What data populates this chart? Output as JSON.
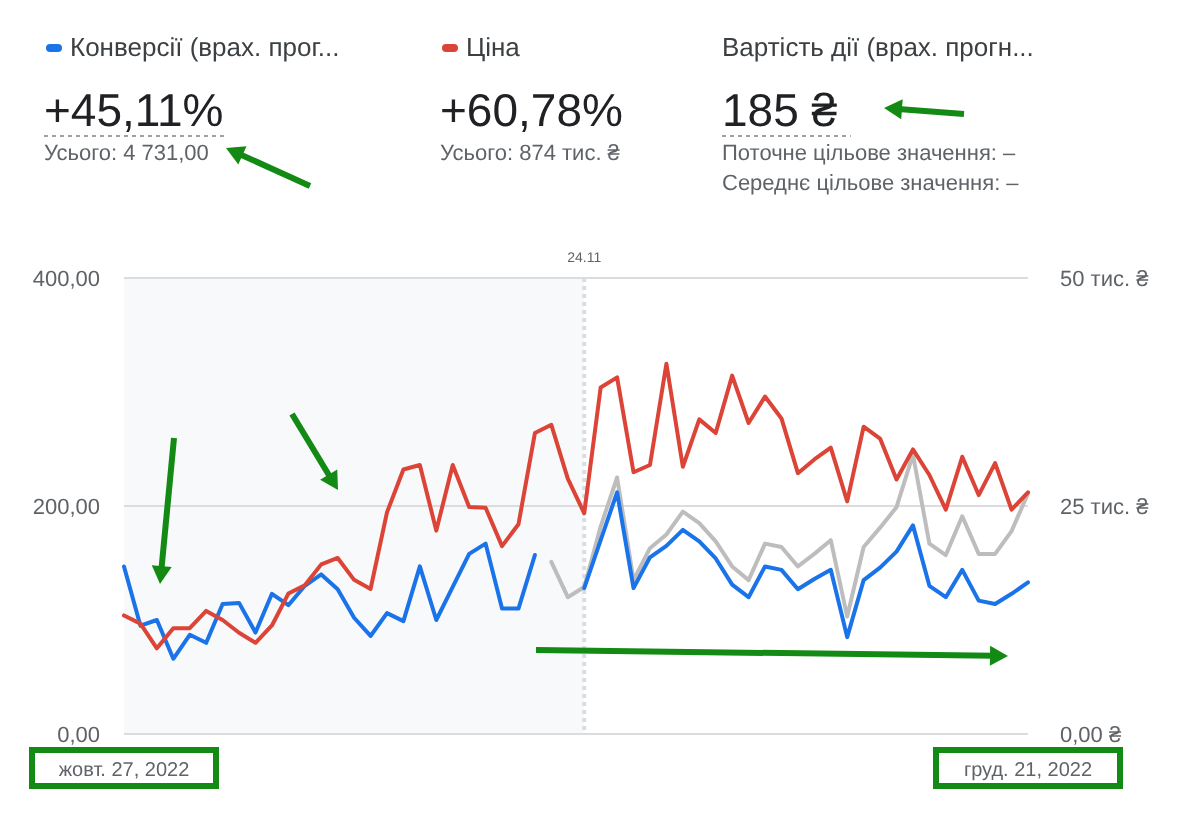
{
  "chart_data": {
    "type": "line",
    "x": [
      "2022-10-27",
      "2022-10-28",
      "2022-10-29",
      "2022-10-30",
      "2022-10-31",
      "2022-11-01",
      "2022-11-02",
      "2022-11-03",
      "2022-11-04",
      "2022-11-05",
      "2022-11-06",
      "2022-11-07",
      "2022-11-08",
      "2022-11-09",
      "2022-11-10",
      "2022-11-11",
      "2022-11-12",
      "2022-11-13",
      "2022-11-14",
      "2022-11-15",
      "2022-11-16",
      "2022-11-17",
      "2022-11-18",
      "2022-11-19",
      "2022-11-20",
      "2022-11-21",
      "2022-11-22",
      "2022-11-23",
      "2022-11-24",
      "2022-11-25",
      "2022-11-26",
      "2022-11-27",
      "2022-11-28",
      "2022-11-29",
      "2022-11-30",
      "2022-12-01",
      "2022-12-02",
      "2022-12-03",
      "2022-12-04",
      "2022-12-05",
      "2022-12-06",
      "2022-12-07",
      "2022-12-08",
      "2022-12-09",
      "2022-12-10",
      "2022-12-11",
      "2022-12-12",
      "2022-12-13",
      "2022-12-14",
      "2022-12-15",
      "2022-12-16",
      "2022-12-17",
      "2022-12-18",
      "2022-12-19",
      "2022-12-20",
      "2022-12-21"
    ],
    "series": [
      {
        "name": "Конверсії (врах. прог...",
        "color": "#1a73e8",
        "values": [
          147,
          95,
          100,
          66,
          87,
          80,
          114,
          115,
          89,
          123,
          113,
          130,
          140,
          127,
          102,
          86,
          106,
          99,
          147,
          100,
          129,
          158,
          167,
          110,
          110,
          157,
          null,
          null,
          128,
          170,
          212,
          128,
          155,
          165,
          179,
          169,
          154,
          131,
          120,
          147,
          144,
          127,
          136,
          144,
          85,
          135,
          146,
          160,
          183,
          130,
          120,
          144,
          117,
          114,
          123,
          133
        ]
      },
      {
        "name": "Ціна",
        "color": "#db4437",
        "axis": "y2",
        "values": [
          13.0,
          12.1,
          9.4,
          11.6,
          11.6,
          13.5,
          12.5,
          11.1,
          10.0,
          11.9,
          15.4,
          16.3,
          18.6,
          19.3,
          16.9,
          15.9,
          24.3,
          29.0,
          29.5,
          22.3,
          29.5,
          24.9,
          24.8,
          20.6,
          23.0,
          33.0,
          33.9,
          28.0,
          24.2,
          38.0,
          39.1,
          28.7,
          29.5,
          40.6,
          29.3,
          34.5,
          33.0,
          39.3,
          34.1,
          37.0,
          34.6,
          28.6,
          30.1,
          31.4,
          25.5,
          33.7,
          32.4,
          27.9,
          31.2,
          28.4,
          24.6,
          30.4,
          26.2,
          29.7,
          24.6,
          26.5
        ]
      },
      {
        "color": "#bdbdbd",
        "values": [
          null,
          null,
          null,
          null,
          null,
          null,
          null,
          null,
          null,
          null,
          null,
          null,
          null,
          null,
          null,
          null,
          null,
          null,
          null,
          null,
          null,
          null,
          null,
          null,
          null,
          null,
          151,
          120,
          129,
          182,
          225,
          135,
          163,
          175,
          195,
          185,
          169,
          147,
          135,
          167,
          164,
          147,
          158,
          170,
          103,
          164,
          181,
          199,
          245,
          167,
          157,
          191,
          158,
          158,
          178,
          211
        ]
      }
    ],
    "xlim": [
      "2022-10-27",
      "2022-12-21"
    ],
    "xticks": [
      {
        "value": "2022-10-27",
        "label": "жовт. 27, 2022"
      },
      {
        "value": "2022-12-21",
        "label": "груд. 21, 2022"
      }
    ],
    "ylim": [
      0,
      400
    ],
    "yticks": [
      {
        "value": 0,
        "label": "0,00"
      },
      {
        "value": 200,
        "label": "200,00"
      },
      {
        "value": 400,
        "label": "400,00"
      }
    ],
    "y2lim": [
      0,
      50
    ],
    "y2ticks": [
      {
        "value": 0,
        "label": "0,00 ₴"
      },
      {
        "value": 25,
        "label": "25 тис. ₴"
      },
      {
        "value": 50,
        "label": "50 тис. ₴"
      }
    ],
    "grid": "y",
    "legend": "top left",
    "ref_lines": [
      {
        "axis": "x",
        "value": "2022-11-24",
        "label": "24.11",
        "line_style": "dotted",
        "color": "#dadce0"
      }
    ],
    "bands": [
      {
        "axis": "x",
        "from": "2022-10-27",
        "to": "2022-11-24",
        "color": "#f8f9fa"
      }
    ],
    "annotations": [
      "+45,11%",
      "Усього: 4 731,00",
      "+60,78%",
      "Усього: 874 тис. ₴",
      "Вартість дії (врах. прогн...",
      "185 ₴",
      "Поточне цільове значення: –",
      "Середнє цільове значення: –"
    ]
  }
}
